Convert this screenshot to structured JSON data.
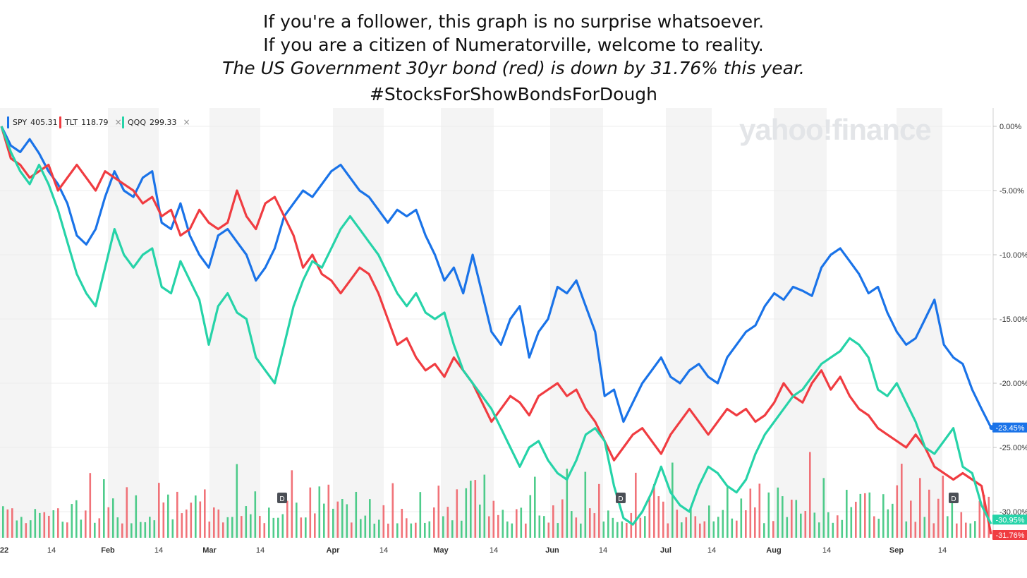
{
  "caption": {
    "line1": "If you're a follower, this graph is no surprise whatsoever.",
    "line2": "If you are a citizen of Numeratorville, welcome to reality.",
    "line3": "The US Government 30yr bond (red) is down by 31.76% this year.",
    "line4": "#StocksForShowBondsForDough"
  },
  "watermark": "yahoo!finance",
  "legend": [
    {
      "symbol": "SPY",
      "value": "405.31",
      "color": "#1a73e8"
    },
    {
      "symbol": "TLT",
      "value": "118.79",
      "color": "#f03c41"
    },
    {
      "symbol": "QQQ",
      "value": "299.33",
      "color": "#26d3a8"
    }
  ],
  "legend_close": "×",
  "chart_data": {
    "type": "line",
    "x_ticks": [
      "22",
      "14",
      "Feb",
      "14",
      "Mar",
      "14",
      "Apr",
      "14",
      "May",
      "14",
      "Jun",
      "14",
      "Jul",
      "14",
      "Aug",
      "14",
      "Sep",
      "14"
    ],
    "y_ticks": [
      "0.00%",
      "-5.00%",
      "-10.00%",
      "-15.00%",
      "-20.00%",
      "-25.00%",
      "-30.00%"
    ],
    "ylim": [
      -32,
      1
    ],
    "dividend_marker": "D",
    "series": [
      {
        "name": "SPY",
        "color": "#1a73e8",
        "end_label": "-23.45%",
        "values": [
          0.0,
          -1.5,
          -2.0,
          -1.0,
          -2.1,
          -3.5,
          -4.5,
          -6.0,
          -8.5,
          -9.2,
          -8.0,
          -5.5,
          -3.5,
          -5.0,
          -5.5,
          -4.0,
          -3.5,
          -7.5,
          -8.0,
          -6.0,
          -8.5,
          -10.0,
          -11.0,
          -8.5,
          -8.0,
          -9.0,
          -10.0,
          -12.0,
          -11.0,
          -9.5,
          -7.0,
          -6.0,
          -5.0,
          -5.5,
          -4.5,
          -3.5,
          -3.0,
          -4.0,
          -5.0,
          -5.5,
          -6.5,
          -7.5,
          -6.5,
          -7.0,
          -6.5,
          -8.5,
          -10.0,
          -12.0,
          -11.0,
          -13.0,
          -10.0,
          -13.0,
          -16.0,
          -17.0,
          -15.0,
          -14.0,
          -18.0,
          -16.0,
          -15.0,
          -12.5,
          -13.0,
          -12.0,
          -14.0,
          -16.0,
          -21.0,
          -20.5,
          -23.0,
          -21.5,
          -20.0,
          -19.0,
          -18.0,
          -19.5,
          -20.0,
          -19.0,
          -18.5,
          -19.5,
          -20.0,
          -18.0,
          -17.0,
          -16.0,
          -15.5,
          -14.0,
          -13.0,
          -13.5,
          -12.5,
          -12.8,
          -13.2,
          -11.0,
          -10.0,
          -9.5,
          -10.5,
          -11.5,
          -13.0,
          -12.5,
          -14.5,
          -16.0,
          -17.0,
          -16.5,
          -15.0,
          -13.5,
          -17.0,
          -18.0,
          -18.5,
          -20.5,
          -22.0,
          -23.45
        ]
      },
      {
        "name": "TLT",
        "color": "#f03c41",
        "end_label": "-31.76%",
        "values": [
          0.0,
          -2.5,
          -3.0,
          -4.0,
          -3.5,
          -3.0,
          -5.0,
          -4.0,
          -3.0,
          -4.0,
          -5.0,
          -3.5,
          -4.0,
          -4.5,
          -5.0,
          -6.0,
          -5.5,
          -7.0,
          -6.5,
          -8.5,
          -8.0,
          -6.5,
          -7.5,
          -8.0,
          -7.5,
          -5.0,
          -7.0,
          -8.0,
          -6.0,
          -5.5,
          -7.0,
          -8.5,
          -11.0,
          -10.0,
          -11.5,
          -12.0,
          -13.0,
          -12.0,
          -11.0,
          -11.5,
          -13.0,
          -15.0,
          -17.0,
          -16.5,
          -18.0,
          -19.0,
          -18.5,
          -19.5,
          -18.0,
          -19.0,
          -20.0,
          -21.5,
          -23.0,
          -22.0,
          -21.0,
          -21.5,
          -22.5,
          -21.0,
          -20.5,
          -20.0,
          -21.0,
          -20.5,
          -22.0,
          -23.0,
          -24.5,
          -26.0,
          -25.0,
          -24.0,
          -23.5,
          -24.5,
          -25.5,
          -24.0,
          -23.0,
          -22.0,
          -23.0,
          -24.0,
          -23.0,
          -22.0,
          -22.5,
          -22.0,
          -23.0,
          -22.5,
          -21.5,
          -20.0,
          -21.0,
          -21.5,
          -20.0,
          -19.0,
          -20.5,
          -19.5,
          -21.0,
          -22.0,
          -22.5,
          -23.5,
          -24.0,
          -24.5,
          -25.0,
          -24.0,
          -25.0,
          -26.5,
          -27.0,
          -27.5,
          -27.0,
          -27.5,
          -28.0,
          -31.76
        ]
      },
      {
        "name": "QQQ",
        "color": "#26d3a8",
        "end_label": "-30.95%",
        "values": [
          0.0,
          -2.0,
          -3.5,
          -4.5,
          -3.0,
          -4.5,
          -6.5,
          -9.0,
          -11.5,
          -13.0,
          -14.0,
          -11.0,
          -8.0,
          -10.0,
          -11.0,
          -10.0,
          -9.5,
          -12.5,
          -13.0,
          -10.5,
          -12.0,
          -13.5,
          -17.0,
          -14.0,
          -13.0,
          -14.5,
          -15.0,
          -18.0,
          -19.0,
          -20.0,
          -17.0,
          -14.0,
          -12.0,
          -10.5,
          -11.0,
          -9.5,
          -8.0,
          -7.0,
          -8.0,
          -9.0,
          -10.0,
          -11.5,
          -13.0,
          -14.0,
          -13.0,
          -14.5,
          -15.0,
          -14.5,
          -17.0,
          -19.0,
          -20.0,
          -21.0,
          -22.0,
          -23.5,
          -25.0,
          -26.5,
          -25.0,
          -24.5,
          -26.0,
          -27.0,
          -27.5,
          -26.0,
          -24.0,
          -23.5,
          -24.5,
          -28.0,
          -30.5,
          -31.0,
          -30.0,
          -28.5,
          -26.5,
          -28.5,
          -29.5,
          -30.0,
          -28.0,
          -26.5,
          -27.0,
          -28.0,
          -28.5,
          -27.5,
          -25.5,
          -24.0,
          -23.0,
          -22.0,
          -21.0,
          -20.5,
          -19.5,
          -18.5,
          -18.0,
          -17.5,
          -16.5,
          -17.0,
          -18.0,
          -20.5,
          -21.0,
          -20.0,
          -21.5,
          -23.0,
          -25.0,
          -25.5,
          -24.5,
          -23.5,
          -26.5,
          -27.0,
          -29.5,
          -30.95
        ]
      }
    ]
  }
}
